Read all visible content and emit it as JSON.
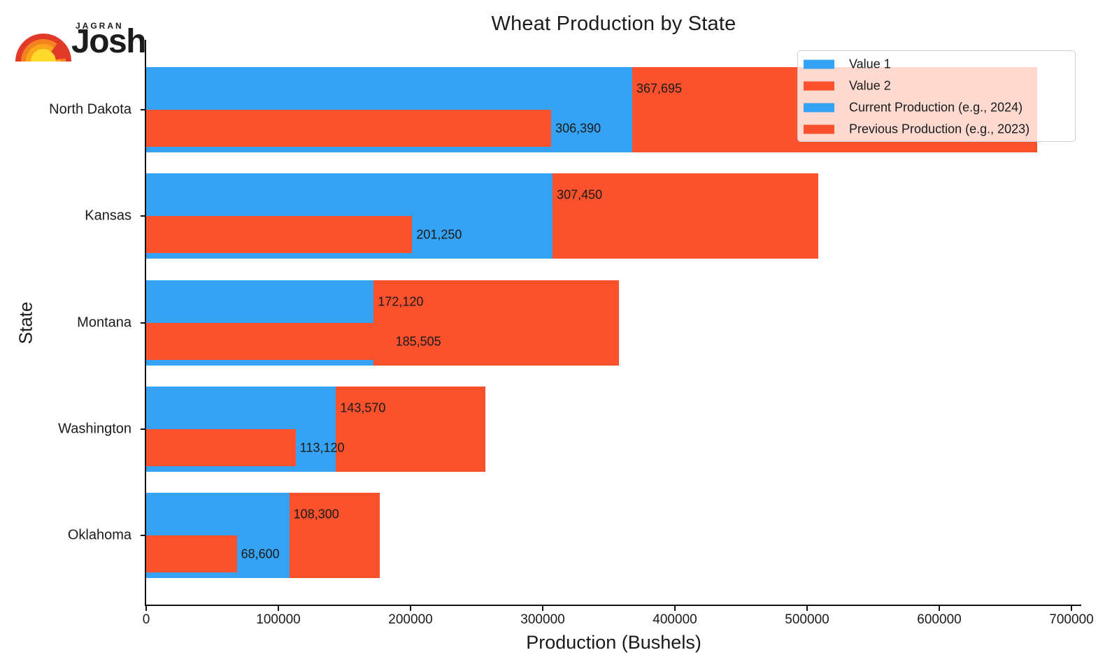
{
  "brand": {
    "top": "JAGRAN",
    "name": "Josh"
  },
  "title": "Wheat Production by State",
  "axes": {
    "xlabel": "Production (Bushels)",
    "ylabel": "State"
  },
  "colors": {
    "blue": "#36A2F3",
    "orange": "#FB512C",
    "text": "#1a1a1a"
  },
  "legend": [
    {
      "color": "blue",
      "label": "Value 1"
    },
    {
      "color": "orange",
      "label": "Value 2"
    },
    {
      "color": "blue",
      "label": "Current Production (e.g., 2024)"
    },
    {
      "color": "orange",
      "label": "Previous Production (e.g., 2023)"
    }
  ],
  "chart_data": {
    "type": "bar",
    "orientation": "horizontal",
    "title": "Wheat Production by State",
    "xlabel": "Production (Bushels)",
    "ylabel": "State",
    "xlim": [
      0,
      707000
    ],
    "grid": false,
    "legend_position": "upper right",
    "xticks": {
      "values": [
        0,
        100000,
        200000,
        300000,
        400000,
        500000,
        600000,
        700000
      ],
      "labels": [
        "0",
        "100000",
        "200000",
        "300000",
        "400000",
        "500000",
        "600000",
        "700000"
      ]
    },
    "categories": [
      "North Dakota",
      "Kansas",
      "Montana",
      "Washington",
      "Oklahoma"
    ],
    "series": [
      {
        "name": "Value 1 / Current Production (e.g., 2024)",
        "color": "blue",
        "values": [
          367695,
          307450,
          172120,
          143570,
          108300
        ],
        "labels": [
          "367,695",
          "307,450",
          "172,120",
          "143,570",
          "108,300"
        ]
      },
      {
        "name": "Value 2 / Previous Production (e.g., 2023)",
        "color": "orange",
        "values": [
          306390,
          201250,
          185505,
          113120,
          68600
        ],
        "labels": [
          "306,390",
          "201,250",
          "185,505",
          "113,120",
          "68,600"
        ]
      }
    ],
    "layout_note": "value2 is drawn stacked to the right of value1 at full bar height; value2 is also overlaid as a shorter bar from 0 on the lower half of each band"
  }
}
